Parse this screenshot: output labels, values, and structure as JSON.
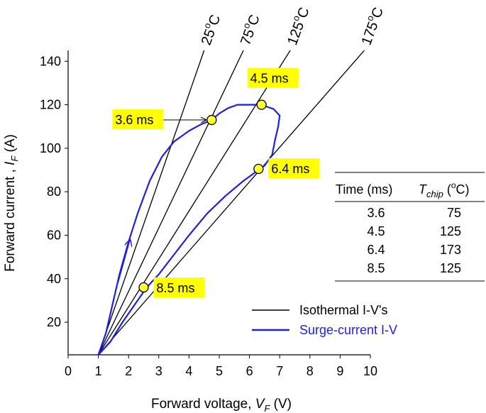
{
  "chart_data": {
    "type": "line",
    "xlabel": "Forward voltage, ",
    "xlabel_symbol": "V",
    "xlabel_sub": "F",
    "xlabel_unit": " (V)",
    "ylabel": "Forward current , ",
    "ylabel_symbol": "I",
    "ylabel_sub": "F",
    "ylabel_unit": " (A)",
    "xlim": [
      0,
      10
    ],
    "ylim": [
      5,
      145
    ],
    "x_ticks": [
      0,
      1,
      2,
      3,
      4,
      5,
      6,
      7,
      8,
      9,
      10
    ],
    "x_tick_labels": [
      "0",
      "1",
      "2",
      "3",
      "4",
      "5",
      "6",
      "7",
      "8",
      "9",
      "10"
    ],
    "y_ticks": [
      20,
      40,
      60,
      80,
      100,
      120,
      140
    ],
    "y_tick_labels": [
      "20",
      "40",
      "60",
      "80",
      "100",
      "120",
      "140"
    ],
    "isotherms": [
      {
        "label": "25°C",
        "label_base": "25",
        "label_sup": "o",
        "label_unit": "C",
        "from": [
          1.0,
          5
        ],
        "to": [
          4.5,
          145
        ]
      },
      {
        "label": "75°C",
        "label_base": "75",
        "label_sup": "o",
        "label_unit": "C",
        "from": [
          1.0,
          5
        ],
        "to": [
          5.8,
          145
        ]
      },
      {
        "label": "125°C",
        "label_base": "125",
        "label_sup": "o",
        "label_unit": "C",
        "from": [
          1.0,
          5
        ],
        "to": [
          7.35,
          145
        ]
      },
      {
        "label": "175°C",
        "label_base": "175",
        "label_sup": "o",
        "label_unit": "C",
        "from": [
          1.0,
          5
        ],
        "to": [
          9.8,
          145
        ]
      }
    ],
    "surge_curve": {
      "name": "Surge-current I-V",
      "color": "#1f1fe0",
      "points": [
        [
          1.0,
          5
        ],
        [
          1.25,
          15
        ],
        [
          1.5,
          30
        ],
        [
          1.7,
          42
        ],
        [
          2.0,
          57
        ],
        [
          2.3,
          70
        ],
        [
          2.7,
          85
        ],
        [
          3.1,
          96
        ],
        [
          3.5,
          103
        ],
        [
          4.0,
          108
        ],
        [
          4.4,
          111
        ],
        [
          4.75,
          113
        ],
        [
          5.0,
          116
        ],
        [
          5.3,
          118.5
        ],
        [
          5.6,
          120
        ],
        [
          6.0,
          120
        ],
        [
          6.4,
          120
        ],
        [
          6.8,
          118
        ],
        [
          7.0,
          115
        ],
        [
          6.95,
          110
        ],
        [
          6.85,
          104
        ],
        [
          6.75,
          97
        ],
        [
          6.5,
          92
        ],
        [
          6.3,
          90
        ],
        [
          5.8,
          85
        ],
        [
          5.2,
          78
        ],
        [
          4.6,
          70
        ],
        [
          4.0,
          60
        ],
        [
          3.5,
          51
        ],
        [
          3.0,
          42
        ],
        [
          2.6,
          36
        ],
        [
          2.2,
          28
        ],
        [
          1.8,
          20
        ],
        [
          1.4,
          11
        ],
        [
          1.0,
          5
        ]
      ]
    },
    "markers": [
      {
        "label": "3.6 ms",
        "x": 4.75,
        "y": 113
      },
      {
        "label": "4.5 ms",
        "x": 6.4,
        "y": 120
      },
      {
        "label": "6.4 ms",
        "x": 6.3,
        "y": 90.5
      },
      {
        "label": "8.5 ms",
        "x": 2.5,
        "y": 36
      }
    ],
    "direction_arrow": {
      "from": [
        1.65,
        38
      ],
      "to": [
        2.05,
        58
      ]
    },
    "table": {
      "header_time": "Time (ms)",
      "header_temp_symbol": "T",
      "header_temp_sub": "chip",
      "header_temp_unit_open": " (",
      "header_temp_unit_sup": "o",
      "header_temp_unit_close": "C)",
      "rows": [
        {
          "time": "3.6",
          "temp": "75"
        },
        {
          "time": "4.5",
          "temp": "125"
        },
        {
          "time": "6.4",
          "temp": "173"
        },
        {
          "time": "8.5",
          "temp": "125"
        }
      ]
    },
    "legend": [
      {
        "label": "Isothermal I-V's",
        "color": "#000000"
      },
      {
        "label": "Surge-current I-V",
        "color": "#1f1fe0"
      }
    ],
    "colors": {
      "marker_fill": "#ffff33",
      "callout_bg": "#ffff00",
      "curve": "#1f1fe0",
      "axis": "#000000"
    }
  }
}
